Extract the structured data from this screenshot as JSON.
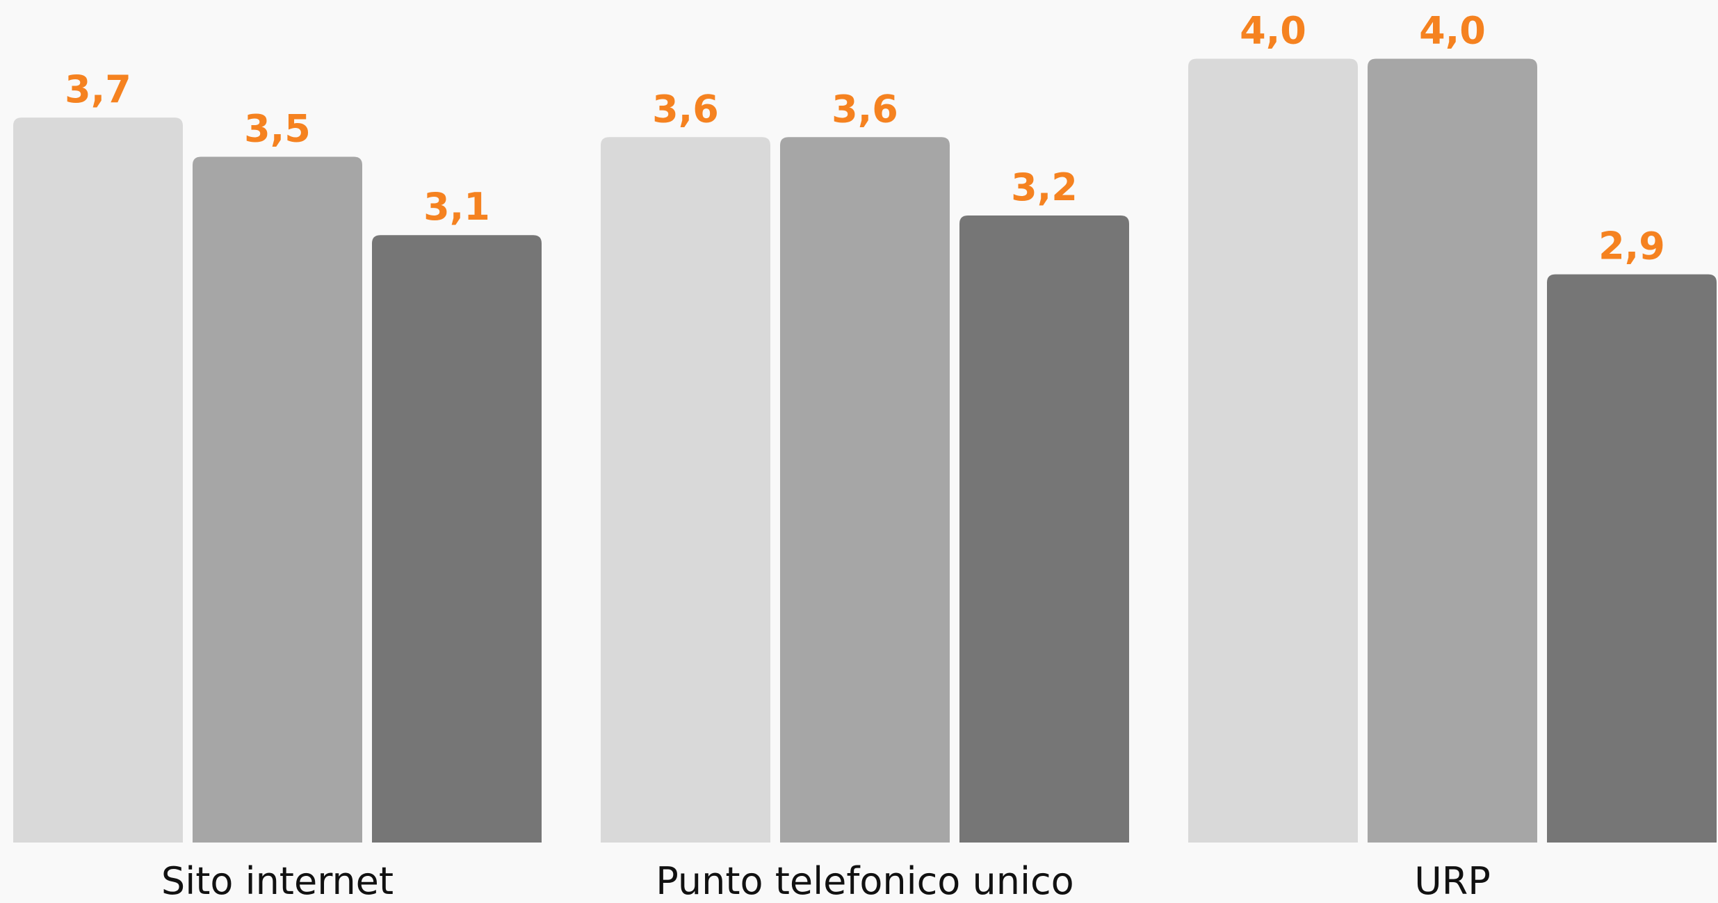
{
  "chart_data": {
    "type": "bar",
    "categories": [
      "Sito internet",
      "Punto telefonico unico",
      "URP"
    ],
    "series": [
      {
        "color": "#d9d9d9",
        "values": [
          3.7,
          3.6,
          4.0
        ],
        "value_labels": [
          "3,7",
          "3,6",
          "4,0"
        ]
      },
      {
        "color": "#a6a6a6",
        "values": [
          3.5,
          3.6,
          4.0
        ],
        "value_labels": [
          "3,5",
          "3,6",
          "4,0"
        ]
      },
      {
        "color": "#767676",
        "values": [
          3.1,
          3.2,
          2.9
        ],
        "value_labels": [
          "3,1",
          "3,2",
          "2,9"
        ]
      }
    ],
    "label_color": "#f58220",
    "ylim": [
      0,
      4.3
    ]
  }
}
